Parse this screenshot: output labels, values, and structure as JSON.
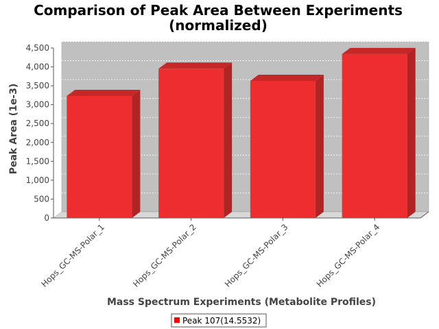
{
  "chart_data": {
    "type": "bar",
    "title_line1": "Comparison of Peak Area Between Experiments",
    "title_line2": "(normalized)",
    "xlabel": "Mass Spectrum Experiments (Metabolite Profiles)",
    "ylabel": "Peak Area (1e-3)",
    "categories": [
      "Hops_GC-MS-Polar_1",
      "Hops_GC-MS-Polar_2",
      "Hops_GC-MS-Polar_3",
      "Hops_GC-MS-Polar_4"
    ],
    "series": [
      {
        "name": "Peak 107(14.5532)",
        "values": [
          3230,
          3950,
          3630,
          4340
        ]
      }
    ],
    "ylim": [
      0,
      4500
    ],
    "yticks": [
      "0",
      "500",
      "1,000",
      "1,500",
      "2,000",
      "2,500",
      "3,000",
      "3,500",
      "4,000",
      "4,500"
    ],
    "ytick_values": [
      0,
      500,
      1000,
      1500,
      2000,
      2500,
      3000,
      3500,
      4000,
      4500
    ],
    "grid": true,
    "legend_position": "bottom",
    "colors": {
      "bar_front": "#ee2e2e",
      "bar_side": "#b02424",
      "bar_top": "#c42828",
      "plot_back": "#c0c0c0",
      "plot_floor": "#d8d8d8",
      "legend_swatch": "#ff0000"
    }
  }
}
